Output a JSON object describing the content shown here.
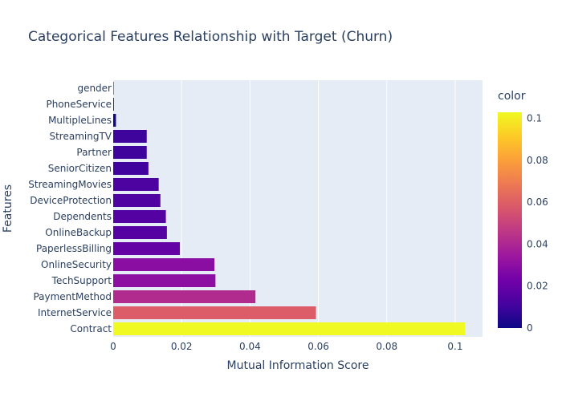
{
  "chart_data": {
    "type": "bar",
    "orientation": "horizontal",
    "title": "Categorical Features Relationship with Target (Churn)",
    "xlabel": "Mutual Information Score",
    "ylabel": "Features",
    "xlim": [
      0,
      0.108
    ],
    "x_ticks": [
      "0",
      "0.02",
      "0.04",
      "0.06",
      "0.08",
      "0.1"
    ],
    "x_tick_values": [
      0,
      0.02,
      0.04,
      0.06,
      0.08,
      0.1
    ],
    "grid": true,
    "categories": [
      "gender",
      "PhoneService",
      "MultipleLines",
      "StreamingTV",
      "Partner",
      "SeniorCitizen",
      "StreamingMovies",
      "DeviceProtection",
      "Dependents",
      "OnlineBackup",
      "PaperlessBilling",
      "OnlineSecurity",
      "TechSupport",
      "PaymentMethod",
      "InternetService",
      "Contract"
    ],
    "values": [
      0.0001,
      0.0002,
      0.0008,
      0.0098,
      0.0098,
      0.0103,
      0.0133,
      0.0138,
      0.0154,
      0.0157,
      0.0195,
      0.0296,
      0.0299,
      0.0416,
      0.0593,
      0.1029
    ],
    "colorbar": {
      "title": "color",
      "range": [
        0,
        0.1029
      ],
      "ticks": [
        "0",
        "0.02",
        "0.04",
        "0.06",
        "0.08",
        "0.1"
      ],
      "tick_values": [
        0,
        0.02,
        0.04,
        0.06,
        0.08,
        0.1
      ],
      "colorscale": [
        "#0d0887",
        "#46039f",
        "#7201a8",
        "#9c179e",
        "#bd3786",
        "#d8576b",
        "#ed7953",
        "#fb9f3a",
        "#fdca26",
        "#f0f921"
      ]
    },
    "plot_background": "#e5ecf6",
    "gridline_color": "#ffffff"
  }
}
